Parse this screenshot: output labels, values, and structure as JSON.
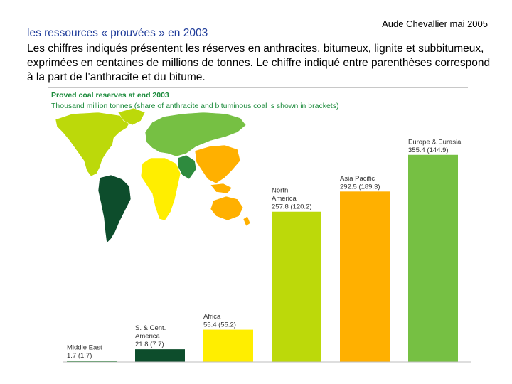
{
  "header": {
    "author": "Aude Chevallier mai 2005",
    "subtitle": "les ressources « prouvées » en 2003",
    "description": "Les chiffres indiqués présentent les réserves en anthracites, bitumeux, lignite et subbitumeux, exprimées en centaines de millions de tonnes. Le chiffre indiqué entre parenthèses correspond à la part de l’anthracite et du bitume."
  },
  "chart_data": {
    "type": "bar",
    "title": "Proved coal reserves at end 2003",
    "subtitle": "Thousand million tonnes (share of anthracite and bituminous coal is shown in brackets)",
    "ylim": [
      0,
      360
    ],
    "categories": [
      "Middle East",
      "S. & Cent. America",
      "Africa",
      "North America",
      "Asia Pacific",
      "Europe & Eurasia"
    ],
    "label_lines": [
      [
        "Middle East",
        "1.7 (1.7)"
      ],
      [
        "S. & Cent.",
        "America",
        "21.8 (7.7)"
      ],
      [
        "Africa",
        "55.4 (55.2)"
      ],
      [
        "North",
        "America",
        "257.8 (120.2)"
      ],
      [
        "Asia Pacific",
        "292.5 (189.3)"
      ],
      [
        "Europe & Eurasia",
        "355.4 (144.9)"
      ]
    ],
    "values": [
      1.7,
      21.8,
      55.4,
      257.8,
      292.5,
      355.4
    ],
    "anthracite_bituminous": [
      1.7,
      7.7,
      55.2,
      120.2,
      189.3,
      144.9
    ],
    "colors": [
      "#2e8b3e",
      "#0d4d2c",
      "#ffee00",
      "#bcd90a",
      "#ffb000",
      "#76c043"
    ]
  },
  "map": {
    "colors": {
      "north_america": "#bcd90a",
      "south_america": "#0d4d2c",
      "europe_eurasia": "#76c043",
      "africa": "#ffee00",
      "middle_east": "#2e8b3e",
      "asia_pacific": "#ffb000"
    }
  }
}
